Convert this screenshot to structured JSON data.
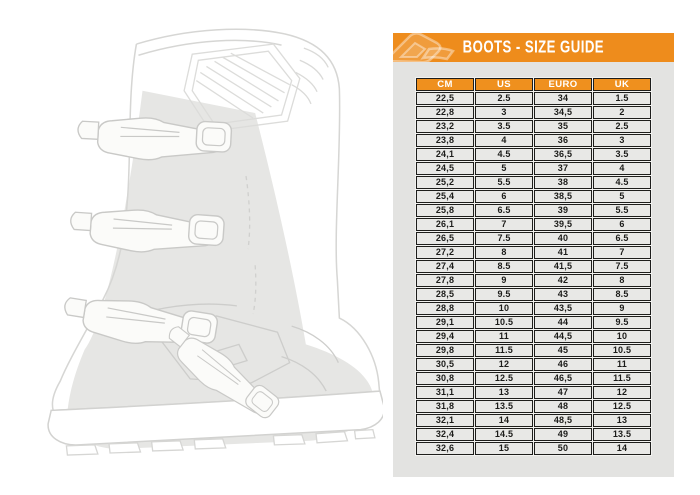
{
  "panel": {
    "title": "BOOTS - SIZE GUIDE",
    "accent_color": "#EE8C1C",
    "logo_icon": "acerbis-logo"
  },
  "illustration": "motocross-boot-line-drawing",
  "chart_data": {
    "type": "table",
    "title": "BOOTS - SIZE GUIDE",
    "columns": [
      "CM",
      "US",
      "EURO",
      "UK"
    ],
    "rows": [
      [
        "22,5",
        "2.5",
        "34",
        "1.5"
      ],
      [
        "22,8",
        "3",
        "34,5",
        "2"
      ],
      [
        "23,2",
        "3.5",
        "35",
        "2.5"
      ],
      [
        "23,8",
        "4",
        "36",
        "3"
      ],
      [
        "24,1",
        "4.5",
        "36,5",
        "3.5"
      ],
      [
        "24,5",
        "5",
        "37",
        "4"
      ],
      [
        "25,2",
        "5.5",
        "38",
        "4.5"
      ],
      [
        "25,4",
        "6",
        "38,5",
        "5"
      ],
      [
        "25,8",
        "6.5",
        "39",
        "5.5"
      ],
      [
        "26,1",
        "7",
        "39,5",
        "6"
      ],
      [
        "26,5",
        "7.5",
        "40",
        "6.5"
      ],
      [
        "27,2",
        "8",
        "41",
        "7"
      ],
      [
        "27,4",
        "8.5",
        "41,5",
        "7.5"
      ],
      [
        "27,8",
        "9",
        "42",
        "8"
      ],
      [
        "28,5",
        "9.5",
        "43",
        "8.5"
      ],
      [
        "28,8",
        "10",
        "43,5",
        "9"
      ],
      [
        "29,1",
        "10.5",
        "44",
        "9.5"
      ],
      [
        "29,4",
        "11",
        "44,5",
        "10"
      ],
      [
        "29,8",
        "11.5",
        "45",
        "10.5"
      ],
      [
        "30,5",
        "12",
        "46",
        "11"
      ],
      [
        "30,8",
        "12.5",
        "46,5",
        "11.5"
      ],
      [
        "31,1",
        "13",
        "47",
        "12"
      ],
      [
        "31,8",
        "13.5",
        "48",
        "12.5"
      ],
      [
        "32,1",
        "14",
        "48,5",
        "13"
      ],
      [
        "32,4",
        "14.5",
        "49",
        "13.5"
      ],
      [
        "32,6",
        "15",
        "50",
        "14"
      ]
    ]
  }
}
